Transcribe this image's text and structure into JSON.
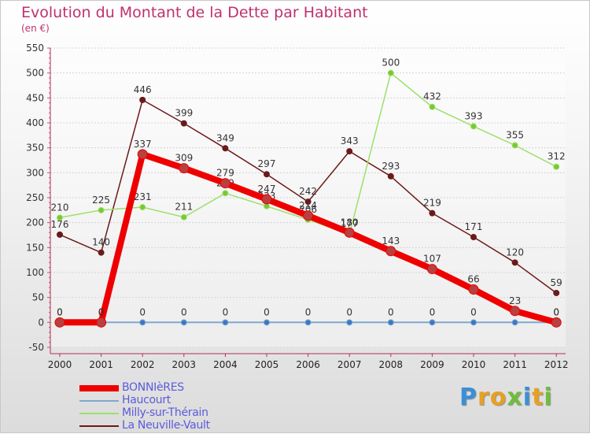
{
  "header": {
    "title": "Evolution du Montant de la Dette par Habitant",
    "subtitle": "(en €)"
  },
  "brand": {
    "letters": [
      {
        "ch": "P",
        "color": "#3b8fd6"
      },
      {
        "ch": "r",
        "color": "#e8a021"
      },
      {
        "ch": "o",
        "color": "#e8a021"
      },
      {
        "ch": "x",
        "color": "#6fbd3c"
      },
      {
        "ch": "i",
        "color": "#3b8fd6"
      },
      {
        "ch": "t",
        "color": "#e8a021"
      },
      {
        "ch": "i",
        "color": "#6fbd3c"
      }
    ]
  },
  "chart_data": {
    "type": "line",
    "title": "Evolution du Montant de la Dette par Habitant",
    "subtitle": "(en €)",
    "xlabel": "",
    "ylabel": "",
    "ylim": [
      -50,
      550
    ],
    "yticks": [
      -50,
      0,
      50,
      100,
      150,
      200,
      250,
      300,
      350,
      400,
      450,
      500,
      550
    ],
    "categories": [
      "2000",
      "2001",
      "2002",
      "2003",
      "2004",
      "2005",
      "2006",
      "2007",
      "2008",
      "2009",
      "2010",
      "2011",
      "2012"
    ],
    "grid": "horizontal",
    "legend_position": "bottom-left",
    "series": [
      {
        "name": "La Neuville-Vault",
        "color": "#6b1a1a",
        "values": [
          176,
          140,
          446,
          399,
          349,
          297,
          242,
          343,
          293,
          219,
          171,
          120,
          59
        ]
      },
      {
        "name": "Milly-sur-Thérain",
        "color": "#9ce06a",
        "values": [
          210,
          225,
          231,
          211,
          259,
          233,
          206,
          177,
          500,
          432,
          393,
          355,
          312
        ]
      },
      {
        "name": "Haucourt",
        "color": "#7ea8d0",
        "values": [
          0,
          0,
          0,
          0,
          0,
          0,
          0,
          0,
          0,
          0,
          0,
          0,
          0
        ]
      },
      {
        "name": "BONNIèRES",
        "color": "#ee0000",
        "values": [
          0,
          0,
          337,
          309,
          279,
          247,
          214,
          180,
          143,
          107,
          66,
          23,
          0
        ]
      }
    ]
  }
}
